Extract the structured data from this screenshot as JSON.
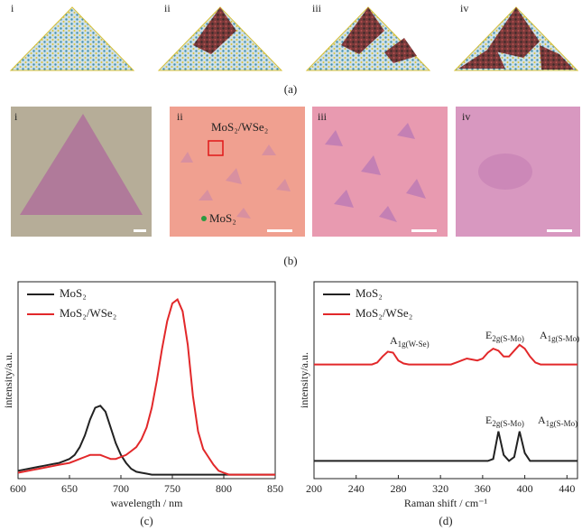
{
  "figure": {
    "panel_a": {
      "label": "(a)",
      "subpanels": [
        "i",
        "ii",
        "iii",
        "iv"
      ]
    },
    "panel_b": {
      "label": "(b)",
      "subpanels": [
        "i",
        "ii",
        "iii",
        "iv"
      ],
      "annotations": [
        "MoS₂/WSe₂",
        "MoS₂"
      ]
    }
  },
  "chart_data": [
    {
      "type": "line",
      "panel_label": "(c)",
      "xlabel": "wavelength / nm",
      "ylabel": "intensity/a.u.",
      "xlim": [
        600,
        850
      ],
      "xticks": [
        600,
        650,
        700,
        750,
        800,
        850
      ],
      "ylim": [
        0,
        1
      ],
      "x": [
        600,
        605,
        610,
        615,
        620,
        625,
        630,
        635,
        640,
        645,
        650,
        655,
        660,
        665,
        670,
        675,
        680,
        685,
        690,
        695,
        700,
        705,
        710,
        715,
        720,
        725,
        730,
        735,
        740,
        745,
        750,
        755,
        760,
        765,
        770,
        775,
        780,
        785,
        790,
        795,
        800,
        805,
        810,
        815,
        820,
        825,
        830,
        835,
        840,
        845,
        850
      ],
      "series": [
        {
          "name": "MoS₂",
          "color": "#222222",
          "values": [
            0.04,
            0.045,
            0.05,
            0.055,
            0.06,
            0.065,
            0.07,
            0.075,
            0.08,
            0.09,
            0.1,
            0.12,
            0.16,
            0.22,
            0.3,
            0.36,
            0.37,
            0.34,
            0.26,
            0.18,
            0.12,
            0.08,
            0.05,
            0.035,
            0.03,
            0.025,
            0.02,
            0.02,
            0.02,
            0.02,
            0.02,
            0.02,
            0.02,
            0.02,
            0.02,
            0.02,
            0.02,
            0.02,
            0.02,
            0.02,
            0.02,
            0.02,
            0.02,
            0.02,
            0.02,
            0.02,
            0.02,
            0.02,
            0.02,
            0.02,
            0.02
          ]
        },
        {
          "name": "MoS₂/WSe₂",
          "color": "#e2282a",
          "values": [
            0.03,
            0.035,
            0.04,
            0.045,
            0.05,
            0.055,
            0.06,
            0.065,
            0.07,
            0.075,
            0.08,
            0.09,
            0.1,
            0.11,
            0.12,
            0.12,
            0.12,
            0.11,
            0.1,
            0.1,
            0.11,
            0.12,
            0.14,
            0.16,
            0.2,
            0.26,
            0.36,
            0.5,
            0.66,
            0.8,
            0.89,
            0.91,
            0.85,
            0.68,
            0.42,
            0.24,
            0.15,
            0.11,
            0.07,
            0.04,
            0.03,
            0.02,
            0.02,
            0.02,
            0.02,
            0.02,
            0.02,
            0.02,
            0.02,
            0.02,
            0.02
          ]
        }
      ]
    },
    {
      "type": "line",
      "panel_label": "(d)",
      "xlabel": "Raman shift / cm⁻¹",
      "ylabel": "intensity/a.u.",
      "xlim": [
        200,
        450
      ],
      "xticks": [
        200,
        240,
        280,
        320,
        360,
        400,
        440
      ],
      "ylim": [
        0,
        1
      ],
      "x": [
        200,
        205,
        210,
        215,
        220,
        225,
        230,
        235,
        240,
        245,
        250,
        255,
        260,
        265,
        270,
        275,
        280,
        285,
        290,
        295,
        300,
        305,
        310,
        315,
        320,
        325,
        330,
        335,
        340,
        345,
        350,
        355,
        360,
        365,
        370,
        375,
        380,
        385,
        390,
        395,
        400,
        405,
        410,
        415,
        420,
        425,
        430,
        435,
        440,
        445,
        450
      ],
      "series": [
        {
          "name": "MoS₂",
          "color": "#222222",
          "values": [
            0.09,
            0.09,
            0.09,
            0.09,
            0.09,
            0.09,
            0.09,
            0.09,
            0.09,
            0.09,
            0.09,
            0.09,
            0.09,
            0.09,
            0.09,
            0.09,
            0.09,
            0.09,
            0.09,
            0.09,
            0.09,
            0.09,
            0.09,
            0.09,
            0.09,
            0.09,
            0.09,
            0.09,
            0.09,
            0.09,
            0.09,
            0.09,
            0.09,
            0.09,
            0.1,
            0.24,
            0.12,
            0.09,
            0.11,
            0.24,
            0.13,
            0.09,
            0.09,
            0.09,
            0.09,
            0.09,
            0.09,
            0.09,
            0.09,
            0.09,
            0.09
          ]
        },
        {
          "name": "MoS₂/WSe₂",
          "color": "#e2282a",
          "values": [
            0.58,
            0.58,
            0.58,
            0.58,
            0.58,
            0.58,
            0.58,
            0.58,
            0.58,
            0.58,
            0.58,
            0.58,
            0.59,
            0.62,
            0.645,
            0.64,
            0.6,
            0.585,
            0.58,
            0.58,
            0.58,
            0.58,
            0.58,
            0.58,
            0.58,
            0.58,
            0.58,
            0.59,
            0.6,
            0.61,
            0.605,
            0.6,
            0.61,
            0.64,
            0.66,
            0.65,
            0.62,
            0.62,
            0.65,
            0.68,
            0.66,
            0.62,
            0.59,
            0.58,
            0.58,
            0.58,
            0.58,
            0.58,
            0.58,
            0.58,
            0.58
          ]
        }
      ],
      "annotations": [
        {
          "symbol": "A",
          "subscript": "1g(W-Se)"
        },
        {
          "symbol": "E",
          "subscript": "2g(S-Mo)"
        },
        {
          "symbol": "A",
          "subscript": "1g(S-Mo)"
        },
        {
          "symbol": "E",
          "subscript": "2g(S-Mo)"
        },
        {
          "symbol": "A",
          "subscript": "1g(S-Mo)"
        }
      ]
    }
  ]
}
